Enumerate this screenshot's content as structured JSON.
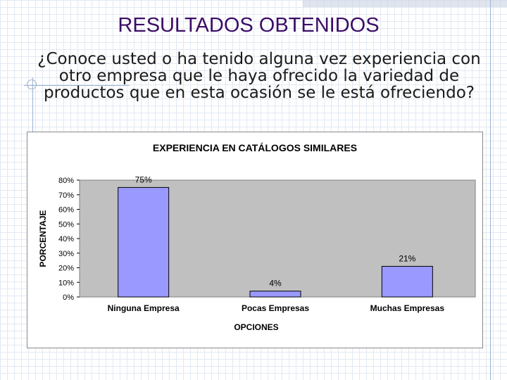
{
  "slide": {
    "title": "RESULTADOS OBTENIDOS",
    "question": "¿Conoce usted o ha tenido alguna vez experiencia con otro empresa que le haya ofrecido la variedad de productos que en esta ocasión se le está ofreciendo?"
  },
  "colors": {
    "title": "#3b0c66",
    "bar_fill": "#9999ff",
    "plot_bg": "#c0c0c0"
  },
  "chart_data": {
    "type": "bar",
    "title": "EXPERIENCIA EN CATÁLOGOS SIMILARES",
    "xlabel": "OPCIONES",
    "ylabel": "PORCENTAJE",
    "categories": [
      "Ninguna Empresa",
      "Pocas Empresas",
      "Muchas Empresas"
    ],
    "values": [
      75,
      4,
      21
    ],
    "data_labels": [
      "75%",
      "4%",
      "21%"
    ],
    "ylim": [
      0,
      80
    ],
    "yticks": [
      "0%",
      "10%",
      "20%",
      "30%",
      "40%",
      "50%",
      "60%",
      "70%",
      "80%"
    ],
    "grid": false,
    "legend": "none"
  }
}
